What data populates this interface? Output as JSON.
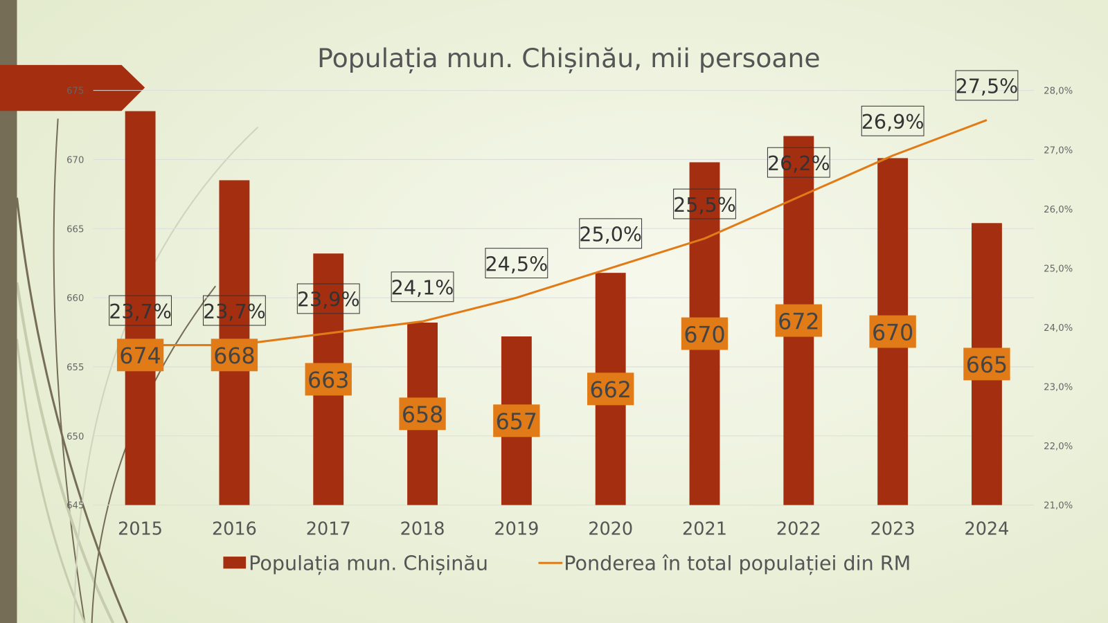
{
  "colors": {
    "bar": "#a32e10",
    "line": "#e07b17",
    "bar_label_bg": "#e07b17",
    "sidebar": "#756d55",
    "accent_arrow": "#a32e10"
  },
  "chart_data": {
    "type": "bar+line",
    "title": "Populația mun. Chișinău, mii persoane",
    "categories": [
      "2015",
      "2016",
      "2017",
      "2018",
      "2019",
      "2020",
      "2021",
      "2022",
      "2023",
      "2024"
    ],
    "series": [
      {
        "name": "Populația mun. Chișinău",
        "type": "bar",
        "axis": "left",
        "values": [
          673.5,
          668.5,
          663.2,
          658.2,
          657.2,
          661.8,
          669.8,
          671.7,
          670.1,
          665.4
        ],
        "labels": [
          "674",
          "668",
          "663",
          "658",
          "657",
          "662",
          "670",
          "672",
          "670",
          "665"
        ]
      },
      {
        "name": "Ponderea în total populației din RM",
        "type": "line",
        "axis": "right",
        "values": [
          23.7,
          23.7,
          23.9,
          24.1,
          24.5,
          25.0,
          25.5,
          26.2,
          26.9,
          27.5
        ],
        "labels": [
          "23,7%",
          "23,7%",
          "23,9%",
          "24,1%",
          "24,5%",
          "25,0%",
          "25,5%",
          "26,2%",
          "26,9%",
          "27,5%"
        ]
      }
    ],
    "y_left": {
      "min": 645,
      "max": 675,
      "ticks": [
        "645",
        "650",
        "655",
        "660",
        "665",
        "670",
        "675"
      ]
    },
    "y_right": {
      "min": 21,
      "max": 28,
      "ticks": [
        "21,0%",
        "22,0%",
        "23,0%",
        "24,0%",
        "25,0%",
        "26,0%",
        "27,0%",
        "28,0%"
      ]
    },
    "grid": true,
    "legend_position": "bottom"
  }
}
